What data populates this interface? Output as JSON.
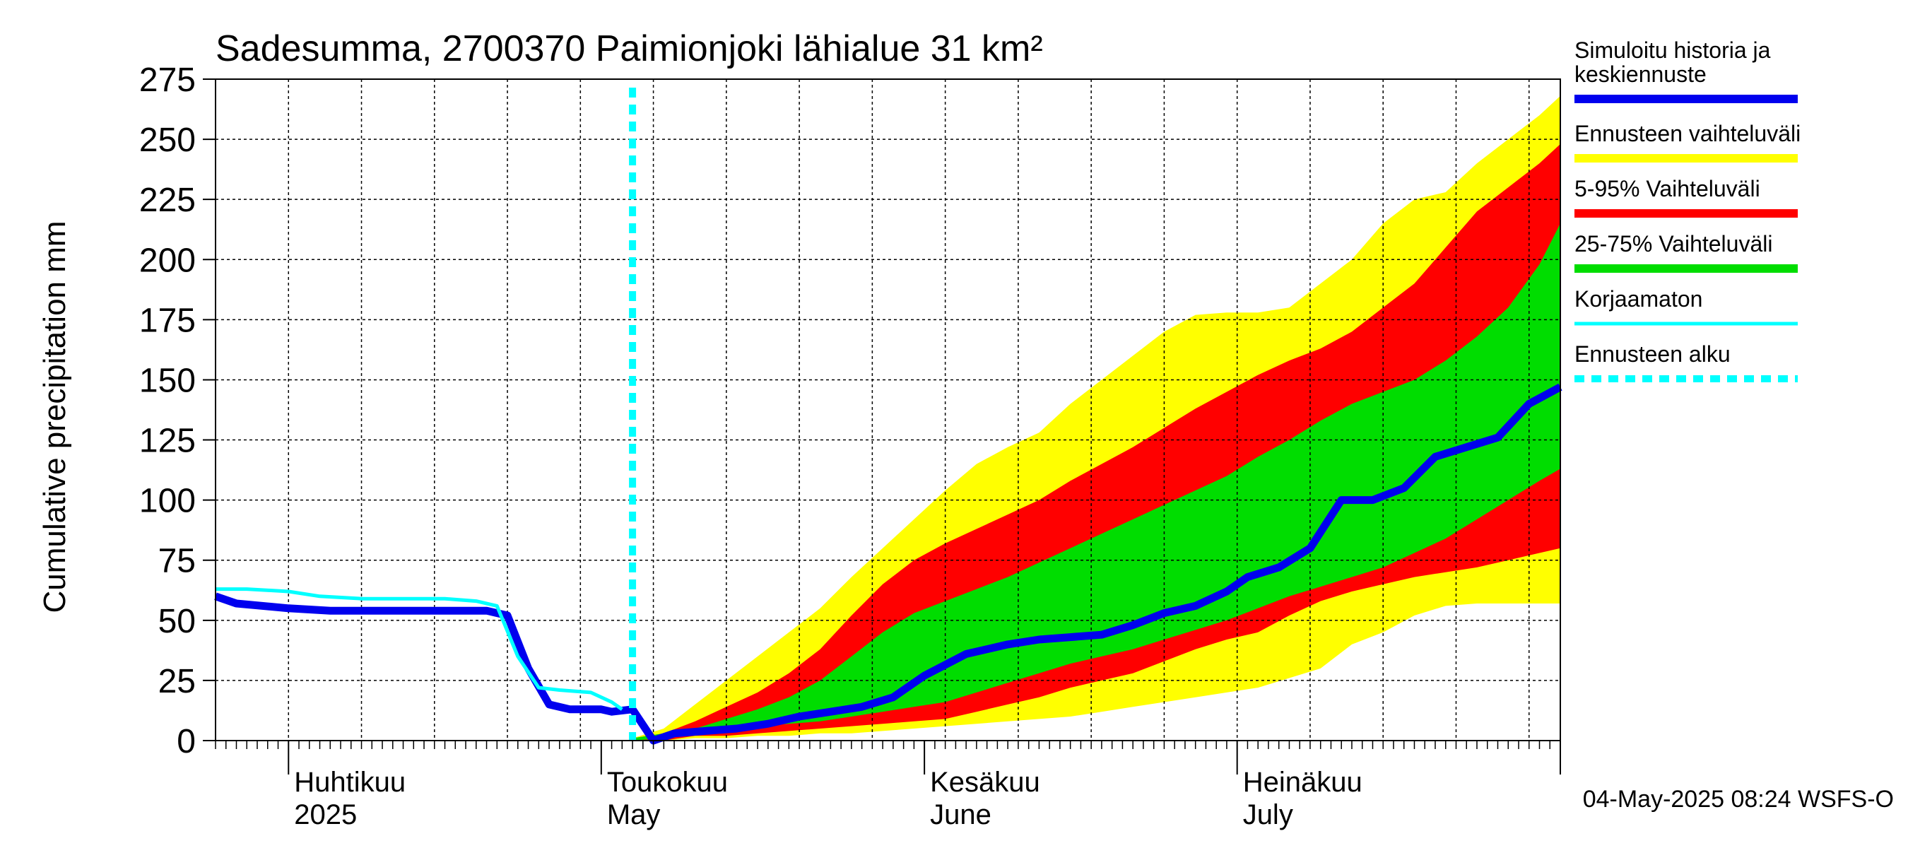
{
  "chart_data": {
    "type": "area",
    "title": "Sadesumma, 2700370 Paimionjoki lähialue 31 km²",
    "ylabel": "Cumulative precipitation   mm",
    "ylim": [
      0,
      275
    ],
    "yticks": [
      0,
      25,
      50,
      75,
      100,
      125,
      150,
      175,
      200,
      225,
      250,
      275
    ],
    "xlim": [
      "2025-03-25",
      "2025-08-01"
    ],
    "grid": true,
    "legend_position": "right",
    "month_labels": [
      {
        "fi": "Huhtikuu",
        "en": "2025",
        "date": "2025-04-01"
      },
      {
        "fi": "Toukokuu",
        "en": "May",
        "date": "2025-05-01"
      },
      {
        "fi": "Kesäkuu",
        "en": "June",
        "date": "2025-06-01"
      },
      {
        "fi": "Heinäkuu",
        "en": "July",
        "date": "2025-07-01"
      }
    ],
    "forecast_start": "2025-05-04",
    "footer": "04-May-2025 08:24 WSFS-O",
    "legend": [
      {
        "label": "Simuloitu historia ja keskiennuste",
        "color": "#0000ee",
        "style": "solid-thick"
      },
      {
        "label": "Ennusteen vaihteluväli",
        "color": "#ffff00",
        "style": "solid-thick"
      },
      {
        "label": "5-95% Vaihteluväli",
        "color": "#ff0000",
        "style": "solid-thick"
      },
      {
        "label": "25-75% Vaihteluväli",
        "color": "#00dd00",
        "style": "solid-thick"
      },
      {
        "label": "Korjaamaton",
        "color": "#00ffff",
        "style": "solid"
      },
      {
        "label": "Ennusteen alku",
        "color": "#00ffff",
        "style": "dotted"
      }
    ],
    "series": [
      {
        "name": "Ennusteen vaihteluväli",
        "kind": "band",
        "color": "#ffff00",
        "x": [
          "2025-05-04",
          "2025-05-07",
          "2025-05-10",
          "2025-05-13",
          "2025-05-16",
          "2025-05-19",
          "2025-05-22",
          "2025-05-25",
          "2025-05-28",
          "2025-05-31",
          "2025-06-03",
          "2025-06-06",
          "2025-06-09",
          "2025-06-12",
          "2025-06-15",
          "2025-06-18",
          "2025-06-21",
          "2025-06-24",
          "2025-06-27",
          "2025-06-30",
          "2025-07-03",
          "2025-07-06",
          "2025-07-09",
          "2025-07-12",
          "2025-07-15",
          "2025-07-18",
          "2025-07-21",
          "2025-07-24",
          "2025-07-27",
          "2025-07-30",
          "2025-08-01"
        ],
        "low": [
          0,
          0,
          1,
          1,
          2,
          2,
          3,
          3,
          4,
          5,
          6,
          7,
          8,
          9,
          10,
          12,
          14,
          16,
          18,
          20,
          22,
          26,
          30,
          40,
          45,
          52,
          56,
          57,
          57,
          57,
          57
        ],
        "high": [
          1,
          5,
          15,
          25,
          35,
          45,
          55,
          68,
          80,
          92,
          104,
          115,
          122,
          128,
          140,
          150,
          160,
          170,
          177,
          178,
          178,
          180,
          190,
          200,
          215,
          225,
          228,
          240,
          250,
          260,
          268
        ]
      },
      {
        "name": "5-95% Vaihteluväli",
        "kind": "band",
        "color": "#ff0000",
        "x": [
          "2025-05-04",
          "2025-05-07",
          "2025-05-10",
          "2025-05-13",
          "2025-05-16",
          "2025-05-19",
          "2025-05-22",
          "2025-05-25",
          "2025-05-28",
          "2025-05-31",
          "2025-06-03",
          "2025-06-06",
          "2025-06-09",
          "2025-06-12",
          "2025-06-15",
          "2025-06-18",
          "2025-06-21",
          "2025-06-24",
          "2025-06-27",
          "2025-06-30",
          "2025-07-03",
          "2025-07-06",
          "2025-07-09",
          "2025-07-12",
          "2025-07-15",
          "2025-07-18",
          "2025-07-21",
          "2025-07-24",
          "2025-07-27",
          "2025-07-30",
          "2025-08-01"
        ],
        "low": [
          0,
          0,
          2,
          2,
          3,
          4,
          5,
          6,
          7,
          8,
          9,
          12,
          15,
          18,
          22,
          25,
          28,
          33,
          38,
          42,
          45,
          52,
          58,
          62,
          65,
          68,
          70,
          72,
          75,
          78,
          80
        ],
        "high": [
          1,
          3,
          8,
          14,
          20,
          28,
          38,
          52,
          65,
          75,
          82,
          88,
          94,
          100,
          108,
          115,
          122,
          130,
          138,
          145,
          152,
          158,
          163,
          170,
          180,
          190,
          205,
          220,
          230,
          240,
          248
        ]
      },
      {
        "name": "25-75% Vaihteluväli",
        "kind": "band",
        "color": "#00dd00",
        "x": [
          "2025-05-04",
          "2025-05-07",
          "2025-05-10",
          "2025-05-13",
          "2025-05-16",
          "2025-05-19",
          "2025-05-22",
          "2025-05-25",
          "2025-05-28",
          "2025-05-31",
          "2025-06-03",
          "2025-06-06",
          "2025-06-09",
          "2025-06-12",
          "2025-06-15",
          "2025-06-18",
          "2025-06-21",
          "2025-06-24",
          "2025-06-27",
          "2025-06-30",
          "2025-07-03",
          "2025-07-06",
          "2025-07-09",
          "2025-07-12",
          "2025-07-15",
          "2025-07-18",
          "2025-07-21",
          "2025-07-24",
          "2025-07-27",
          "2025-07-30",
          "2025-08-01"
        ],
        "low": [
          0,
          1,
          3,
          4,
          6,
          7,
          8,
          10,
          12,
          14,
          16,
          20,
          24,
          28,
          32,
          35,
          38,
          42,
          46,
          50,
          55,
          60,
          64,
          68,
          72,
          78,
          84,
          92,
          100,
          108,
          113
        ],
        "high": [
          1,
          3,
          5,
          9,
          13,
          18,
          25,
          35,
          45,
          53,
          58,
          63,
          68,
          74,
          80,
          86,
          92,
          98,
          104,
          110,
          118,
          125,
          133,
          140,
          145,
          150,
          158,
          168,
          180,
          198,
          215
        ]
      },
      {
        "name": "Simuloitu historia ja keskiennuste",
        "kind": "line",
        "color": "#0000ee",
        "x": [
          "2025-03-25",
          "2025-03-27",
          "2025-04-01",
          "2025-04-05",
          "2025-04-10",
          "2025-04-15",
          "2025-04-20",
          "2025-04-22",
          "2025-04-24",
          "2025-04-26",
          "2025-04-28",
          "2025-05-01",
          "2025-05-02",
          "2025-05-04",
          "2025-05-06",
          "2025-05-08",
          "2025-05-11",
          "2025-05-14",
          "2025-05-17",
          "2025-05-20",
          "2025-05-23",
          "2025-05-26",
          "2025-05-29",
          "2025-06-01",
          "2025-06-05",
          "2025-06-09",
          "2025-06-12",
          "2025-06-15",
          "2025-06-18",
          "2025-06-21",
          "2025-06-24",
          "2025-06-27",
          "2025-06-30",
          "2025-07-02",
          "2025-07-05",
          "2025-07-08",
          "2025-07-11",
          "2025-07-14",
          "2025-07-17",
          "2025-07-20",
          "2025-07-23",
          "2025-07-26",
          "2025-07-29",
          "2025-08-01"
        ],
        "values": [
          60,
          57,
          55,
          54,
          54,
          54,
          54,
          52,
          30,
          15,
          13,
          13,
          12,
          13,
          0,
          3,
          4,
          5,
          7,
          10,
          12,
          14,
          18,
          27,
          36,
          40,
          42,
          43,
          44,
          48,
          53,
          56,
          62,
          68,
          72,
          80,
          100,
          100,
          105,
          118,
          122,
          126,
          140,
          147
        ]
      },
      {
        "name": "Korjaamaton",
        "kind": "line",
        "color": "#00ffff",
        "x": [
          "2025-03-25",
          "2025-03-28",
          "2025-04-01",
          "2025-04-04",
          "2025-04-08",
          "2025-04-12",
          "2025-04-16",
          "2025-04-19",
          "2025-04-21",
          "2025-04-23",
          "2025-04-25",
          "2025-04-27",
          "2025-04-30",
          "2025-05-02",
          "2025-05-03"
        ],
        "values": [
          63,
          63,
          62,
          60,
          59,
          59,
          59,
          58,
          56,
          35,
          22,
          21,
          20,
          16,
          13
        ]
      }
    ]
  }
}
